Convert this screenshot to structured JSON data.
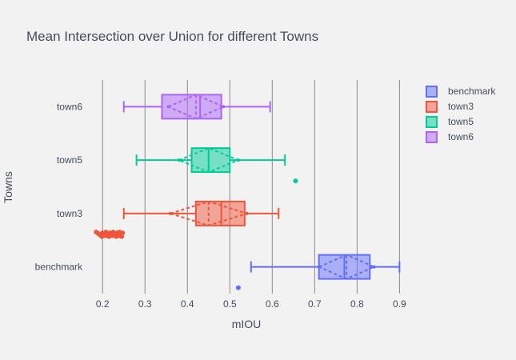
{
  "chart_data": {
    "type": "box",
    "orientation": "horizontal",
    "title": "Mean Intersection over Union for different Towns",
    "xlabel": "mIOU",
    "ylabel": "Towns",
    "xlim": [
      0.16,
      0.92
    ],
    "xticks": [
      0.2,
      0.3,
      0.4,
      0.5,
      0.6,
      0.7,
      0.8,
      0.9
    ],
    "xtick_labels": [
      "0.2",
      "0.3",
      "0.4",
      "0.5",
      "0.6",
      "0.7",
      "0.8",
      "0.9"
    ],
    "categories": [
      "benchmark",
      "town3",
      "town5",
      "town6"
    ],
    "grid": {
      "x": true,
      "y": false
    },
    "legend_position": "top-right",
    "boxmean": "sd",
    "series": [
      {
        "name": "benchmark",
        "category": "benchmark",
        "color": "#636efa",
        "lower_fence": 0.55,
        "q1": 0.71,
        "median": 0.77,
        "q3": 0.83,
        "upper_fence": 0.9,
        "mean": 0.775,
        "sd": 0.065,
        "outliers": [
          0.52
        ]
      },
      {
        "name": "town3",
        "category": "town3",
        "color": "#ef553b",
        "lower_fence": 0.25,
        "q1": 0.42,
        "median": 0.48,
        "q3": 0.535,
        "upper_fence": 0.615,
        "mean": 0.45,
        "sd": 0.09,
        "outliers": [
          0.185,
          0.19,
          0.195,
          0.198,
          0.2,
          0.203,
          0.205,
          0.208,
          0.21,
          0.212,
          0.215,
          0.217,
          0.22,
          0.222,
          0.225,
          0.227,
          0.23,
          0.232,
          0.234,
          0.236,
          0.238,
          0.24,
          0.242,
          0.244,
          0.245,
          0.247
        ]
      },
      {
        "name": "town5",
        "category": "town5",
        "color": "#00cc96",
        "lower_fence": 0.28,
        "q1": 0.41,
        "median": 0.45,
        "q3": 0.5,
        "upper_fence": 0.63,
        "mean": 0.45,
        "sd": 0.07,
        "outliers": [
          0.655
        ]
      },
      {
        "name": "town6",
        "category": "town6",
        "color": "#ab63fa",
        "lower_fence": 0.25,
        "q1": 0.34,
        "median": 0.43,
        "q3": 0.48,
        "upper_fence": 0.595,
        "mean": 0.42,
        "sd": 0.065,
        "outliers": []
      }
    ]
  }
}
